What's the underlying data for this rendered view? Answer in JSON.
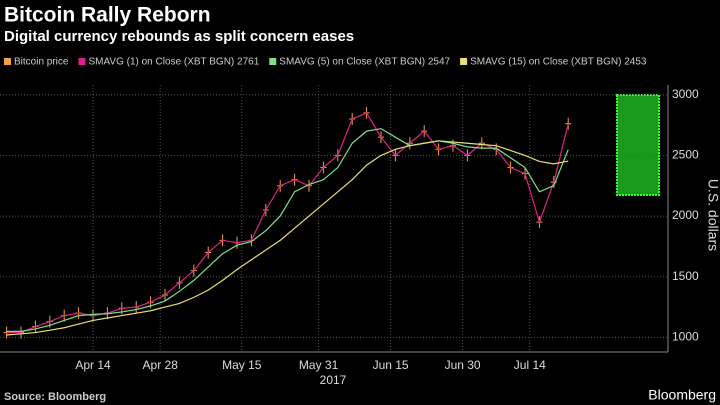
{
  "chart_data": {
    "type": "line",
    "title": "Bitcoin Rally Reborn",
    "subtitle": "Digital currency rebounds as split concern eases",
    "source": "Source: Bloomberg",
    "brand": "Bloomberg",
    "y_label": "U.S. dollars",
    "year_label": "2017",
    "x": [
      "2017-03-27",
      "2017-03-30",
      "2017-04-02",
      "2017-04-05",
      "2017-04-08",
      "2017-04-11",
      "2017-04-14",
      "2017-04-17",
      "2017-04-20",
      "2017-04-23",
      "2017-04-26",
      "2017-04-29",
      "2017-05-02",
      "2017-05-05",
      "2017-05-08",
      "2017-05-11",
      "2017-05-14",
      "2017-05-17",
      "2017-05-20",
      "2017-05-23",
      "2017-05-26",
      "2017-05-29",
      "2017-06-01",
      "2017-06-04",
      "2017-06-07",
      "2017-06-10",
      "2017-06-13",
      "2017-06-16",
      "2017-06-19",
      "2017-06-22",
      "2017-06-25",
      "2017-06-28",
      "2017-07-01",
      "2017-07-04",
      "2017-07-07",
      "2017-07-10",
      "2017-07-13",
      "2017-07-16",
      "2017-07-19",
      "2017-07-22"
    ],
    "series": [
      {
        "name": "Bitcoin price",
        "color": "#f5a04a",
        "values": [
          1040,
          1040,
          1090,
          1130,
          1180,
          1200,
          1180,
          1200,
          1240,
          1250,
          1290,
          1350,
          1450,
          1550,
          1700,
          1800,
          1780,
          1800,
          2050,
          2250,
          2300,
          2250,
          2400,
          2500,
          2800,
          2850,
          2650,
          2500,
          2600,
          2700,
          2550,
          2580,
          2500,
          2600,
          2550,
          2400,
          2350,
          1950,
          2280,
          2761
        ]
      },
      {
        "name": "SMAVG (1) on Close (XBT BGN) 2761",
        "color": "#e0208a",
        "values": [
          1040,
          1040,
          1090,
          1130,
          1180,
          1200,
          1180,
          1200,
          1240,
          1250,
          1290,
          1350,
          1450,
          1550,
          1700,
          1800,
          1780,
          1800,
          2050,
          2250,
          2300,
          2250,
          2400,
          2500,
          2800,
          2850,
          2650,
          2500,
          2600,
          2700,
          2550,
          2580,
          2500,
          2600,
          2550,
          2400,
          2350,
          1950,
          2280,
          2761
        ]
      },
      {
        "name": "SMAVG (5) on Close (XBT BGN) 2547",
        "color": "#7ee08a",
        "values": [
          1050,
          1050,
          1070,
          1100,
          1140,
          1180,
          1190,
          1195,
          1210,
          1230,
          1260,
          1300,
          1380,
          1470,
          1580,
          1690,
          1760,
          1790,
          1880,
          2000,
          2200,
          2260,
          2300,
          2400,
          2600,
          2700,
          2720,
          2650,
          2580,
          2600,
          2620,
          2600,
          2570,
          2560,
          2560,
          2480,
          2400,
          2200,
          2250,
          2547
        ]
      },
      {
        "name": "SMAVG (15) on Close (XBT BGN) 2453",
        "color": "#e8e070",
        "values": [
          1020,
          1030,
          1040,
          1060,
          1080,
          1110,
          1140,
          1160,
          1180,
          1200,
          1220,
          1250,
          1280,
          1330,
          1390,
          1470,
          1560,
          1640,
          1720,
          1800,
          1900,
          2000,
          2100,
          2200,
          2300,
          2420,
          2500,
          2550,
          2580,
          2600,
          2620,
          2610,
          2600,
          2590,
          2580,
          2540,
          2500,
          2450,
          2430,
          2453
        ]
      }
    ],
    "xticks": [
      {
        "value": "2017-04-14",
        "label": "Apr 14"
      },
      {
        "value": "2017-04-28",
        "label": "Apr 28"
      },
      {
        "value": "2017-05-15",
        "label": "May 15"
      },
      {
        "value": "2017-05-31",
        "label": "May 31"
      },
      {
        "value": "2017-06-15",
        "label": "Jun 15"
      },
      {
        "value": "2017-06-30",
        "label": "Jun 30"
      },
      {
        "value": "2017-07-14",
        "label": "Jul 14"
      }
    ],
    "ylim": [
      880,
      3080
    ],
    "yticks": [
      1000,
      1500,
      2000,
      2500,
      3000
    ],
    "grid": true
  }
}
